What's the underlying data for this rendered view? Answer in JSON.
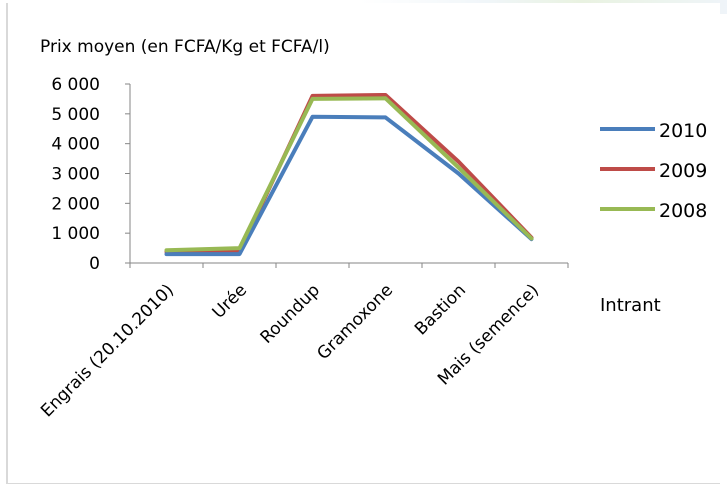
{
  "chart_data": {
    "type": "line",
    "title": "Prix moyen (en FCFA/Kg et FCFA/l)",
    "xlabel": "Intrant",
    "ylabel": "",
    "categories": [
      "Engrais (20.10.2010)",
      "Urée",
      "Roundup",
      "Gramoxone",
      "Bastion",
      "Mais (semence)"
    ],
    "ylim": [
      0,
      6000
    ],
    "yticks": [
      0,
      1000,
      2000,
      3000,
      4000,
      5000,
      6000
    ],
    "ytick_labels": [
      "0",
      "1 000",
      "2 000",
      "3 000",
      "4 000",
      "5 000",
      "6 000"
    ],
    "grid": false,
    "legend_position": "right",
    "series": [
      {
        "name": "2010",
        "color": "#4a7ebb",
        "values": [
          300,
          300,
          4900,
          4880,
          3000,
          800
        ]
      },
      {
        "name": "2009",
        "color": "#be4b48",
        "values": [
          380,
          380,
          5600,
          5630,
          3400,
          850
        ]
      },
      {
        "name": "2008",
        "color": "#98b954",
        "values": [
          430,
          500,
          5500,
          5520,
          3200,
          820
        ]
      }
    ]
  }
}
